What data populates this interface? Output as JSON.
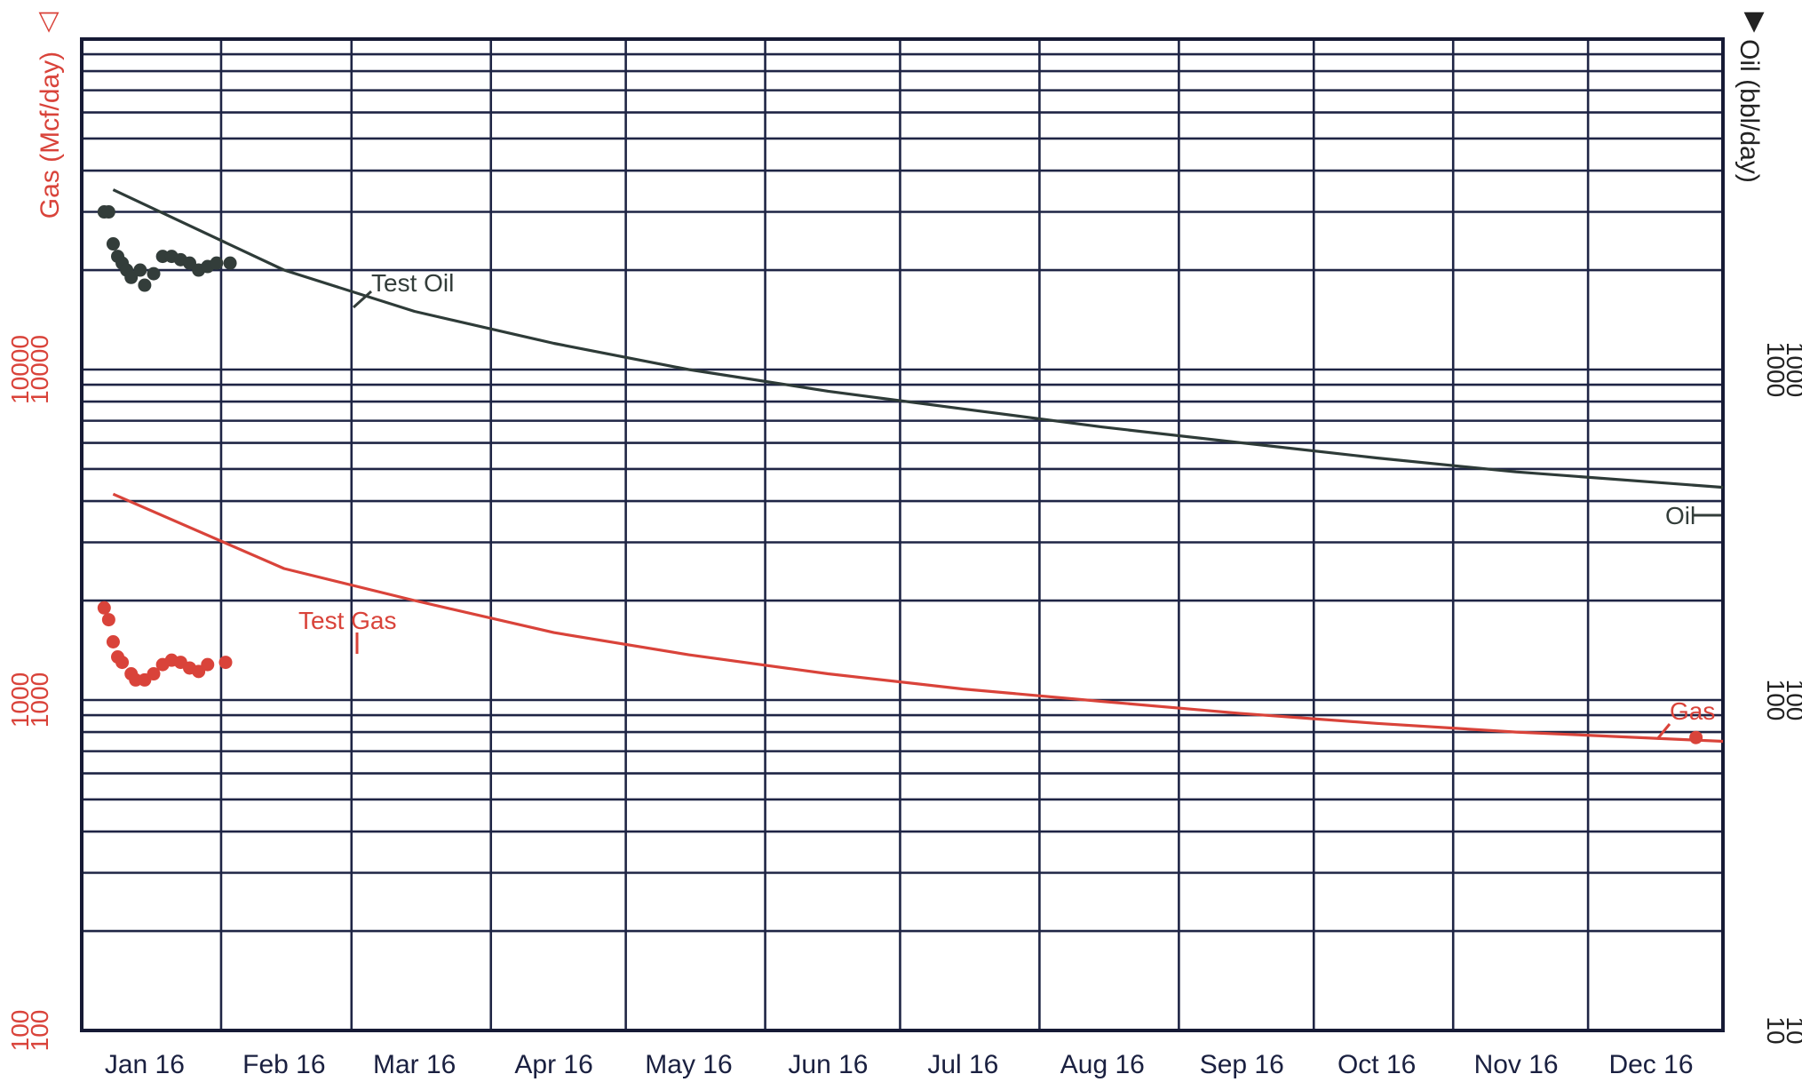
{
  "chart_data": {
    "type": "line",
    "xlabel": "",
    "x_ticks": [
      "Jan 16",
      "Feb 16",
      "Mar 16",
      "Apr 16",
      "May 16",
      "Jun 16",
      "Jul 16",
      "Aug 16",
      "Sep 16",
      "Oct 16",
      "Nov 16",
      "Dec 16"
    ],
    "xlim": [
      "2016-01-01",
      "2016-12-31"
    ],
    "y_left": {
      "label": "Gas (Mcf/day)",
      "scale": "log",
      "range": [
        100,
        100000
      ],
      "tick_labels": [
        "100",
        "1000",
        "10000"
      ],
      "marker": "▽",
      "color": "#d9433a"
    },
    "y_right": {
      "label": "Oil (bbl/day)",
      "scale": "log",
      "range": [
        10,
        10000
      ],
      "tick_labels": [
        "10",
        "100",
        "1000"
      ],
      "marker": "▼",
      "color": "#222222"
    },
    "grid": true,
    "series": [
      {
        "name": "Oil",
        "type": "line",
        "axis": "right",
        "color": "#2e3b38",
        "points": [
          {
            "x": "2016-01-08",
            "y": 3500
          },
          {
            "x": "2016-02-15",
            "y": 2000
          },
          {
            "x": "2016-03-15",
            "y": 1500
          },
          {
            "x": "2016-04-15",
            "y": 1200
          },
          {
            "x": "2016-05-15",
            "y": 1000
          },
          {
            "x": "2016-06-15",
            "y": 860
          },
          {
            "x": "2016-07-15",
            "y": 760
          },
          {
            "x": "2016-08-15",
            "y": 670
          },
          {
            "x": "2016-09-15",
            "y": 600
          },
          {
            "x": "2016-10-15",
            "y": 540
          },
          {
            "x": "2016-11-15",
            "y": 490
          },
          {
            "x": "2016-12-31",
            "y": 440
          }
        ]
      },
      {
        "name": "Gas",
        "type": "line",
        "axis": "left",
        "color": "#d9433a",
        "points": [
          {
            "x": "2016-01-08",
            "y": 4200
          },
          {
            "x": "2016-02-15",
            "y": 2500
          },
          {
            "x": "2016-03-15",
            "y": 2000
          },
          {
            "x": "2016-04-15",
            "y": 1600
          },
          {
            "x": "2016-05-15",
            "y": 1370
          },
          {
            "x": "2016-06-15",
            "y": 1200
          },
          {
            "x": "2016-07-15",
            "y": 1080
          },
          {
            "x": "2016-08-15",
            "y": 990
          },
          {
            "x": "2016-09-15",
            "y": 910
          },
          {
            "x": "2016-10-15",
            "y": 850
          },
          {
            "x": "2016-11-15",
            "y": 800
          },
          {
            "x": "2016-12-31",
            "y": 750
          }
        ]
      },
      {
        "name": "Test Oil",
        "type": "scatter",
        "axis": "right",
        "color": "#333d3a",
        "points": [
          {
            "x": "2016-01-06",
            "y": 3000
          },
          {
            "x": "2016-01-07",
            "y": 3000
          },
          {
            "x": "2016-01-08",
            "y": 2400
          },
          {
            "x": "2016-01-09",
            "y": 2200
          },
          {
            "x": "2016-01-10",
            "y": 2100
          },
          {
            "x": "2016-01-11",
            "y": 2000
          },
          {
            "x": "2016-01-12",
            "y": 1900
          },
          {
            "x": "2016-01-14",
            "y": 2000
          },
          {
            "x": "2016-01-15",
            "y": 1800
          },
          {
            "x": "2016-01-17",
            "y": 1950
          },
          {
            "x": "2016-01-19",
            "y": 2200
          },
          {
            "x": "2016-01-21",
            "y": 2200
          },
          {
            "x": "2016-01-23",
            "y": 2150
          },
          {
            "x": "2016-01-25",
            "y": 2100
          },
          {
            "x": "2016-01-27",
            "y": 2000
          },
          {
            "x": "2016-01-29",
            "y": 2050
          },
          {
            "x": "2016-01-31",
            "y": 2100
          },
          {
            "x": "2016-02-03",
            "y": 2100
          }
        ]
      },
      {
        "name": "Test Gas",
        "type": "scatter",
        "axis": "left",
        "color": "#d9433a",
        "points": [
          {
            "x": "2016-01-06",
            "y": 1900
          },
          {
            "x": "2016-01-07",
            "y": 1750
          },
          {
            "x": "2016-01-08",
            "y": 1500
          },
          {
            "x": "2016-01-09",
            "y": 1350
          },
          {
            "x": "2016-01-10",
            "y": 1300
          },
          {
            "x": "2016-01-12",
            "y": 1200
          },
          {
            "x": "2016-01-13",
            "y": 1150
          },
          {
            "x": "2016-01-15",
            "y": 1150
          },
          {
            "x": "2016-01-17",
            "y": 1200
          },
          {
            "x": "2016-01-19",
            "y": 1280
          },
          {
            "x": "2016-01-21",
            "y": 1320
          },
          {
            "x": "2016-01-23",
            "y": 1300
          },
          {
            "x": "2016-01-25",
            "y": 1250
          },
          {
            "x": "2016-01-27",
            "y": 1220
          },
          {
            "x": "2016-01-29",
            "y": 1280
          },
          {
            "x": "2016-02-02",
            "y": 1300
          }
        ]
      },
      {
        "name": "Gas",
        "type": "scatter",
        "axis": "left",
        "color": "#d9433a",
        "points": [
          {
            "x": "2016-12-25",
            "y": 770
          }
        ]
      }
    ],
    "annotations": [
      "Test Oil",
      "Test Gas",
      "Oil",
      "Gas"
    ]
  }
}
